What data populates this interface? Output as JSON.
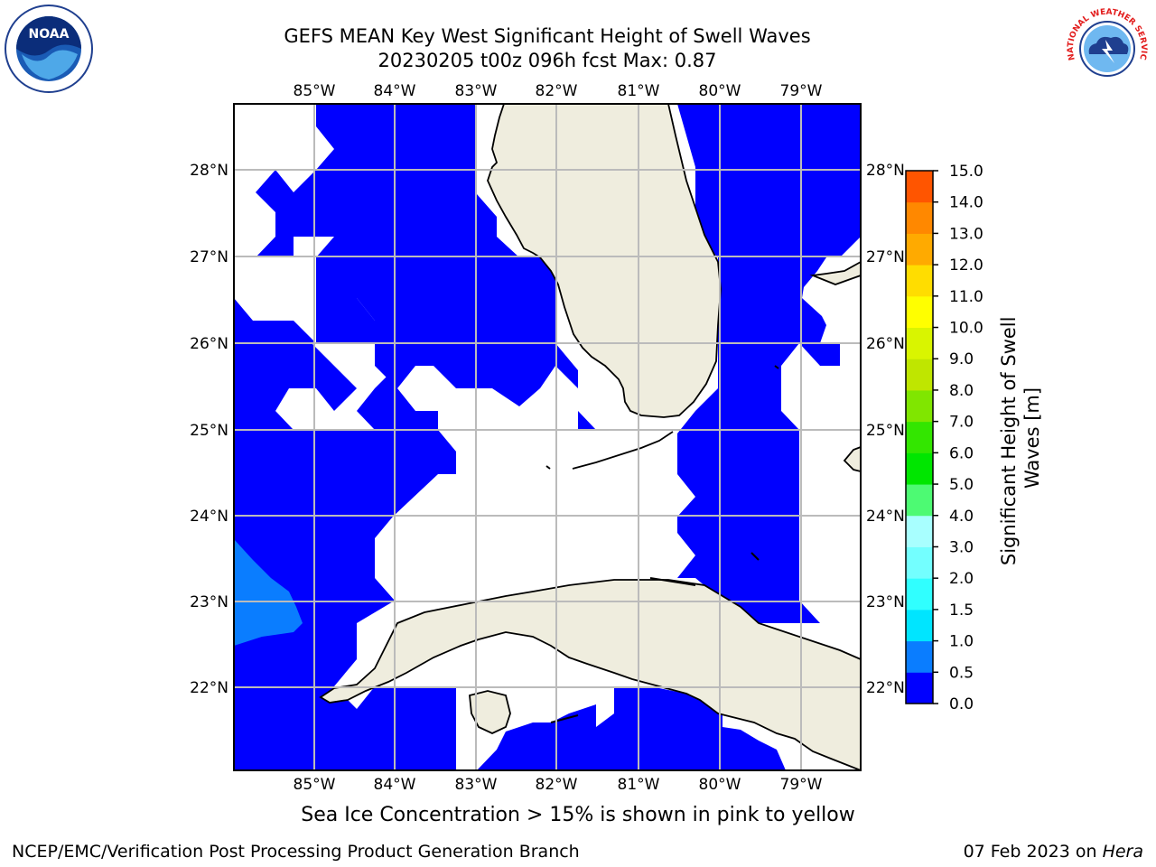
{
  "title": {
    "line1": "GEFS MEAN Key West Significant Height of Swell Waves",
    "line2": "20230205 t00z 096h fcst   Max: 0.87"
  },
  "logos": {
    "noaa_text": "NOAA",
    "nws_text": "NATIONAL WEATHER SERVICE"
  },
  "map": {
    "lon_ticks": [
      "85°W",
      "84°W",
      "83°W",
      "82°W",
      "81°W",
      "80°W",
      "79°W"
    ],
    "lat_ticks": [
      "28°N",
      "27°N",
      "26°N",
      "25°N",
      "24°N",
      "23°N",
      "22°N"
    ],
    "lon_range": [
      -86.0,
      -78.3
    ],
    "lat_range": [
      21.0,
      28.77
    ],
    "land_color": "#efedde",
    "swell_color_low": "#0000ff",
    "swell_color_mid": "#0080ff",
    "grid_color": "#bbbbbb",
    "regions": [
      "Florida",
      "Cuba",
      "Gulf of Mexico",
      "Straits of Florida",
      "Bahamas"
    ]
  },
  "colorbar": {
    "ticks": [
      "0.0",
      "0.5",
      "1.0",
      "1.5",
      "2.0",
      "3.0",
      "4.0",
      "5.0",
      "6.0",
      "7.0",
      "8.0",
      "9.0",
      "10.0",
      "11.0",
      "12.0",
      "13.0",
      "14.0",
      "15.0"
    ],
    "colors": [
      "#0000ff",
      "#0a7dff",
      "#00e5ff",
      "#30ffff",
      "#73ffff",
      "#a8ffff",
      "#4dfa73",
      "#00e600",
      "#33e600",
      "#80e600",
      "#bfe600",
      "#d9f500",
      "#ffff00",
      "#ffdd00",
      "#ffaa00",
      "#ff8800",
      "#ff5500",
      "#ff2200",
      "#ff0000"
    ],
    "label": "Significant Height of Swell Waves [m]",
    "label_line1": "Significant Height of Swell",
    "label_line2": "Waves [m]"
  },
  "footer": {
    "note": "Sea Ice Concentration > 15% is shown in pink to yellow",
    "left": "NCEP/EMC/Verification Post Processing Product Generation Branch",
    "right_date": "07 Feb 2023 on ",
    "right_host": "Hera"
  }
}
